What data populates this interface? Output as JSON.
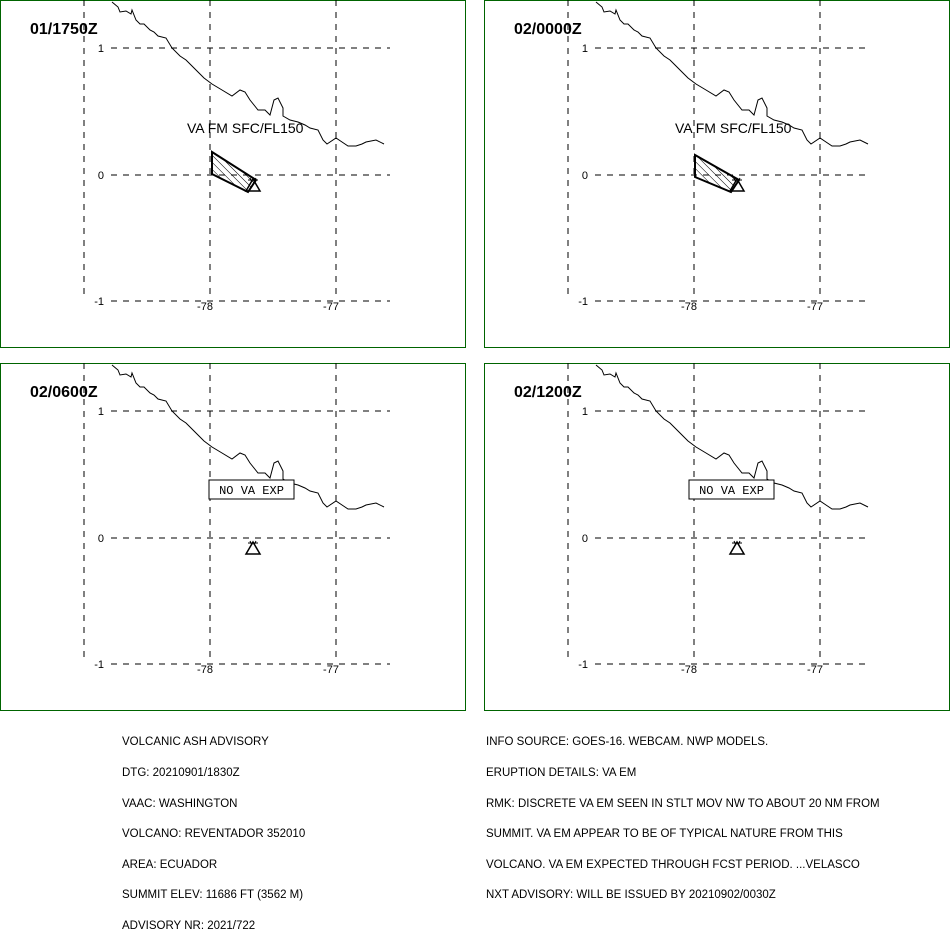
{
  "panels": [
    {
      "time": "01/1750Z",
      "ash": {
        "shown": true,
        "label": "VA FM SFC/FL150"
      },
      "no_ash": {
        "shown": false,
        "label": ""
      }
    },
    {
      "time": "02/0000Z",
      "ash": {
        "shown": true,
        "label": "VA FM SFC/FL150"
      },
      "no_ash": {
        "shown": false,
        "label": ""
      }
    },
    {
      "time": "02/0600Z",
      "ash": {
        "shown": false,
        "label": ""
      },
      "no_ash": {
        "shown": true,
        "label": "NO VA EXP"
      }
    },
    {
      "time": "02/1200Z",
      "ash": {
        "shown": false,
        "label": ""
      },
      "no_ash": {
        "shown": true,
        "label": "NO VA EXP"
      }
    }
  ],
  "map": {
    "lat_labels": [
      "1",
      "0",
      "-1"
    ],
    "lon_labels": [
      "-78",
      "-77"
    ],
    "volcano_icon": "volcano-triangle-icon",
    "colors": {
      "frame": "#006400",
      "lines": "#000000",
      "background": "#ffffff"
    }
  },
  "advisory_left": [
    "VOLCANIC ASH ADVISORY",
    "DTG: 20210901/1830Z",
    "VAAC: WASHINGTON",
    "VOLCANO: REVENTADOR 352010",
    "AREA: ECUADOR",
    "SUMMIT ELEV: 11686 FT (3562 M)",
    "ADVISORY NR: 2021/722"
  ],
  "advisory_right": [
    "INFO SOURCE: GOES-16. WEBCAM. NWP MODELS.",
    "ERUPTION DETAILS: VA EM",
    "RMK: DISCRETE VA EM SEEN IN STLT MOV NW TO ABOUT 20 NM FROM",
    "SUMMIT. VA EM APPEAR TO BE OF TYPICAL NATURE FROM THIS",
    "VOLCANO. VA EM EXPECTED THROUGH FCST PERIOD. ...VELASCO",
    "NXT ADVISORY: WILL BE ISSUED BY 20210902/0030Z"
  ]
}
